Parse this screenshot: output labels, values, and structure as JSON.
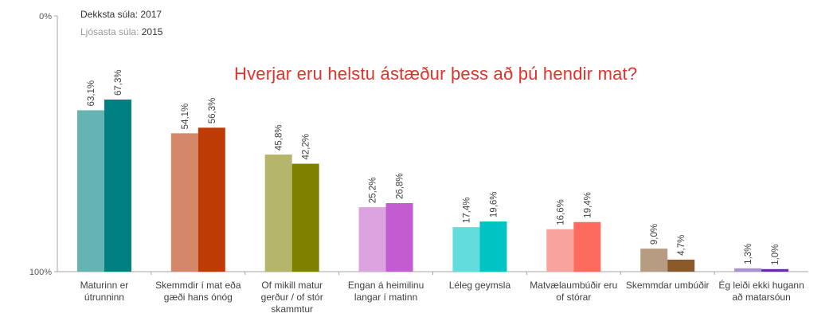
{
  "legend": {
    "dark_label": "Dekksta súla:",
    "dark_year": "2017",
    "light_label": "Ljósasta súla:",
    "light_year": "2015"
  },
  "chart_data": {
    "type": "bar",
    "title": "Hverjar eru helstu ástæður þess að þú hendir mat?",
    "ylim": [
      0,
      100
    ],
    "yticks": [
      "0%",
      "100%"
    ],
    "grid": false,
    "categories": [
      [
        "Maturinn er",
        "útrunninn"
      ],
      [
        "Skemmdir í mat eða",
        "gæði hans ónóg"
      ],
      [
        "Of mikill matur",
        "gerður / of stór",
        "skammtur"
      ],
      [
        "Engan á heimilinu",
        "langar í matinn"
      ],
      [
        "Léleg geymsla"
      ],
      [
        "Matvælaumbúðir eru",
        "of stórar"
      ],
      [
        "Skemmdar umbúðir"
      ],
      [
        "Ég leiði ekki hugann",
        "að matarsóun"
      ]
    ],
    "series": [
      {
        "name": "2015",
        "values": [
          63.1,
          54.1,
          45.8,
          25.2,
          17.4,
          16.6,
          9.0,
          1.3
        ],
        "labels": [
          "63,1%",
          "54,1%",
          "45,8%",
          "25,2%",
          "17,4%",
          "16,6%",
          "9,0%",
          "1,3%"
        ],
        "colors": [
          "#66b4b2",
          "#d5876a",
          "#b5b66b",
          "#dba3df",
          "#62dcdc",
          "#f6a49c",
          "#b79c82",
          "#a892d2"
        ]
      },
      {
        "name": "2017",
        "values": [
          67.3,
          56.3,
          42.2,
          26.8,
          19.6,
          19.4,
          4.7,
          1.0
        ],
        "labels": [
          "67,3%",
          "56,3%",
          "42,2%",
          "26,8%",
          "19,6%",
          "19,4%",
          "4,7%",
          "1,0%"
        ],
        "colors": [
          "#008080",
          "#bf3b05",
          "#808000",
          "#c35cd1",
          "#00c4c4",
          "#fd6b5e",
          "#8a5a2a",
          "#6a2ca8"
        ]
      }
    ]
  }
}
